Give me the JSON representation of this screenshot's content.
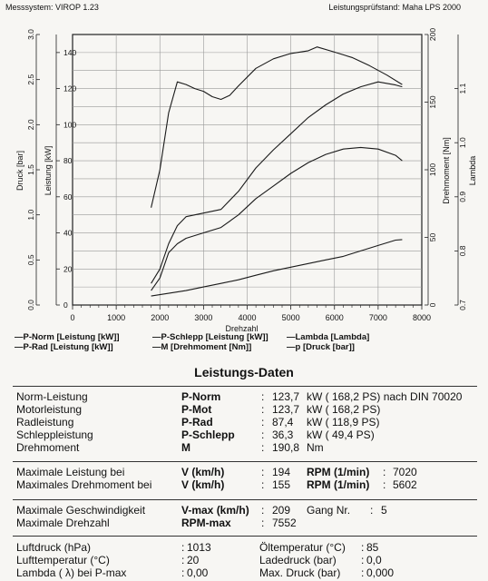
{
  "header": {
    "left": "Messsystem: VIROP 1.23",
    "right": "Leistungsprüfstand: Maha LPS 2000"
  },
  "chart_data": {
    "type": "line",
    "xlabel": "Drehzahl",
    "x_ticks": [
      "0",
      "1000",
      "2000",
      "3000",
      "4000",
      "5000",
      "6000",
      "7000",
      "8000"
    ],
    "xlim": [
      0,
      8000
    ],
    "axes": {
      "druck": {
        "label": "Druck [bar]",
        "lim": [
          0,
          3.0
        ],
        "ticks": [
          "0.0",
          "0.5",
          "1.0",
          "1.5",
          "2.0",
          "2.5",
          "3.0"
        ]
      },
      "leistung": {
        "label": "Leistung [kW]",
        "lim": [
          0,
          150
        ],
        "ticks": [
          "0",
          "20",
          "40",
          "60",
          "80",
          "100",
          "120",
          "140"
        ]
      },
      "drehmoment": {
        "label": "Drehmoment [Nm]",
        "lim": [
          0,
          200
        ],
        "ticks": [
          "0",
          "50",
          "100",
          "150",
          "200"
        ]
      },
      "lambda": {
        "label": "Lambda",
        "lim": [
          0.7,
          1.2
        ],
        "ticks": [
          "0.7",
          "0.8",
          "0.9",
          "1.0",
          "1.1"
        ]
      }
    },
    "grid": true,
    "series": [
      {
        "name": "P-Norm [Leistung [kW]]",
        "axis": "leistung",
        "x": [
          1800,
          2000,
          2200,
          2400,
          2600,
          3000,
          3400,
          3800,
          4200,
          4600,
          5000,
          5400,
          5800,
          6200,
          6600,
          7000,
          7400,
          7552
        ],
        "y": [
          12,
          20,
          34,
          44,
          49,
          51,
          53,
          63,
          76,
          86,
          95,
          104,
          111,
          117,
          121,
          123.7,
          122,
          121
        ]
      },
      {
        "name": "P-Rad [Leistung [kW]]",
        "axis": "leistung",
        "x": [
          1800,
          2000,
          2200,
          2400,
          2600,
          3000,
          3400,
          3800,
          4200,
          4600,
          5000,
          5400,
          5800,
          6200,
          6600,
          7000,
          7400,
          7552
        ],
        "y": [
          8,
          15,
          29,
          34,
          37,
          40,
          43,
          50,
          59,
          66,
          73,
          79,
          83.5,
          86.5,
          87.4,
          86.5,
          83,
          80
        ]
      },
      {
        "name": "P-Schlepp [Leistung [kW]]",
        "axis": "leistung",
        "x": [
          1800,
          2200,
          2600,
          3000,
          3400,
          3800,
          4200,
          4600,
          5000,
          5400,
          5800,
          6200,
          6600,
          7000,
          7400,
          7552
        ],
        "y": [
          5,
          6.5,
          8,
          10,
          12,
          14,
          16.5,
          19,
          21,
          23,
          25,
          27,
          30,
          33,
          36,
          36.3
        ]
      },
      {
        "name": "M [Drehmoment [Nm]]",
        "axis": "drehmoment",
        "x": [
          1800,
          2000,
          2200,
          2400,
          2600,
          2800,
          3000,
          3200,
          3400,
          3600,
          3800,
          4200,
          4600,
          5000,
          5400,
          5600,
          6000,
          6400,
          6800,
          7200,
          7552
        ],
        "y": [
          72,
          100,
          142,
          165,
          163,
          160,
          158,
          154,
          152,
          155,
          162,
          175,
          182,
          186,
          188,
          190.8,
          187,
          183,
          177,
          170,
          163
        ]
      }
    ]
  },
  "legend": [
    "P-Norm  [Leistung [kW]]",
    "P-Schlepp  [Leistung [kW]]",
    "Lambda  [Lambda]",
    "P-Rad  [Leistung [kW]]",
    "M  [Drehmoment [Nm]]",
    "p  [Druck [bar]]"
  ],
  "title": "Leistungs-Daten",
  "block1": [
    {
      "label": "Norm-Leistung",
      "key": "P-Norm",
      "colon": ":",
      "val": "123,7",
      "unit": "kW ( 168,2  PS) nach DIN 70020"
    },
    {
      "label": "Motorleistung",
      "key": "P-Mot",
      "colon": ":",
      "val": "123,7",
      "unit": "kW ( 168,2  PS)"
    },
    {
      "label": "Radleistung",
      "key": "P-Rad",
      "colon": ":",
      "val": "87,4",
      "unit": "kW ( 118,9  PS)"
    },
    {
      "label": "Schleppleistung",
      "key": "P-Schlepp",
      "colon": ":",
      "val": "36,3",
      "unit": "kW ( 49,4  PS)"
    },
    {
      "label": "Drehmoment",
      "key": "M",
      "colon": ":",
      "val": "190,8",
      "unit": "Nm"
    }
  ],
  "block2": [
    {
      "label": "Maximale Leistung bei",
      "key": "V (km/h)",
      "colon": ":",
      "val": "194",
      "key2": "RPM (1/min)",
      "colon2": ":",
      "val2": "7020"
    },
    {
      "label": "Maximales Drehmoment bei",
      "key": "V (km/h)",
      "colon": ":",
      "val": "155",
      "key2": "RPM (1/min)",
      "colon2": ":",
      "val2": "5602"
    }
  ],
  "block3": [
    {
      "label": "Maximale Geschwindigkeit",
      "key": "V-max (km/h)",
      "colon": ":",
      "val": "209",
      "extra": "Gang Nr.",
      "colon2": ":",
      "val2": "5"
    },
    {
      "label": "Maximale Drehzahl",
      "key": "RPM-max",
      "colon": ":",
      "val": "7552"
    }
  ],
  "block4": [
    {
      "label": "Luftdruck (hPa)",
      "colon": ":",
      "val": "1013",
      "label2": "Öltemperatur (°C)",
      "colon2": ":",
      "val2": "85"
    },
    {
      "label": "Lufttemperatur (°C)",
      "colon": ":",
      "val": "20",
      "label2": "Ladedruck (bar)",
      "colon2": ":",
      "val2": "0,0"
    },
    {
      "label": "Lambda ( λ) bei P-max",
      "colon": ":",
      "val": "0,00",
      "label2": "Max. Druck (bar)",
      "colon2": ":",
      "val2": "0,000"
    }
  ]
}
